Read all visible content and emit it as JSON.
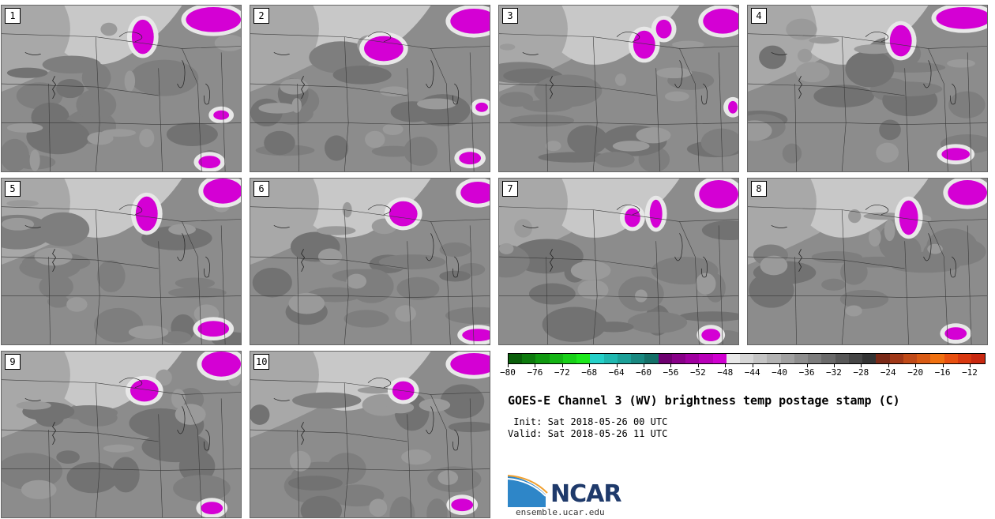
{
  "panels": [
    {
      "label": "1"
    },
    {
      "label": "2"
    },
    {
      "label": "3"
    },
    {
      "label": "4"
    },
    {
      "label": "5"
    },
    {
      "label": "6"
    },
    {
      "label": "7"
    },
    {
      "label": "8"
    },
    {
      "label": "9"
    },
    {
      "label": "10"
    }
  ],
  "colorbar": {
    "colors": [
      "#0a5e0a",
      "#0d7a0d",
      "#109810",
      "#14b414",
      "#18d018",
      "#1ce81c",
      "#25d0c8",
      "#20b8b0",
      "#1ca098",
      "#188880",
      "#147068",
      "#6e0070",
      "#880088",
      "#a000a0",
      "#b800b8",
      "#d000d0",
      "#e8e8e8",
      "#d6d6d6",
      "#c4c4c4",
      "#b2b2b2",
      "#a0a0a0",
      "#8e8e8e",
      "#7c7c7c",
      "#6a6a6a",
      "#585858",
      "#464646",
      "#343434",
      "#7a2a18",
      "#a03818",
      "#c04a18",
      "#d85a14",
      "#f07010",
      "#e85010",
      "#d83810",
      "#c82810"
    ],
    "tick_labels": [
      "−80",
      "−76",
      "−72",
      "−68",
      "−64",
      "−60",
      "−56",
      "−52",
      "−48",
      "−44",
      "−40",
      "−36",
      "−32",
      "−28",
      "−24",
      "−20",
      "−16",
      "−12"
    ]
  },
  "title": "GOES-E Channel 3 (WV) brightness temp postage stamp (C)",
  "init": " Init: Sat 2018-05-26 00 UTC",
  "valid": "Valid: Sat 2018-05-26 11 UTC",
  "logo": {
    "text": "NCAR",
    "site": "ensemble.ucar.edu"
  }
}
